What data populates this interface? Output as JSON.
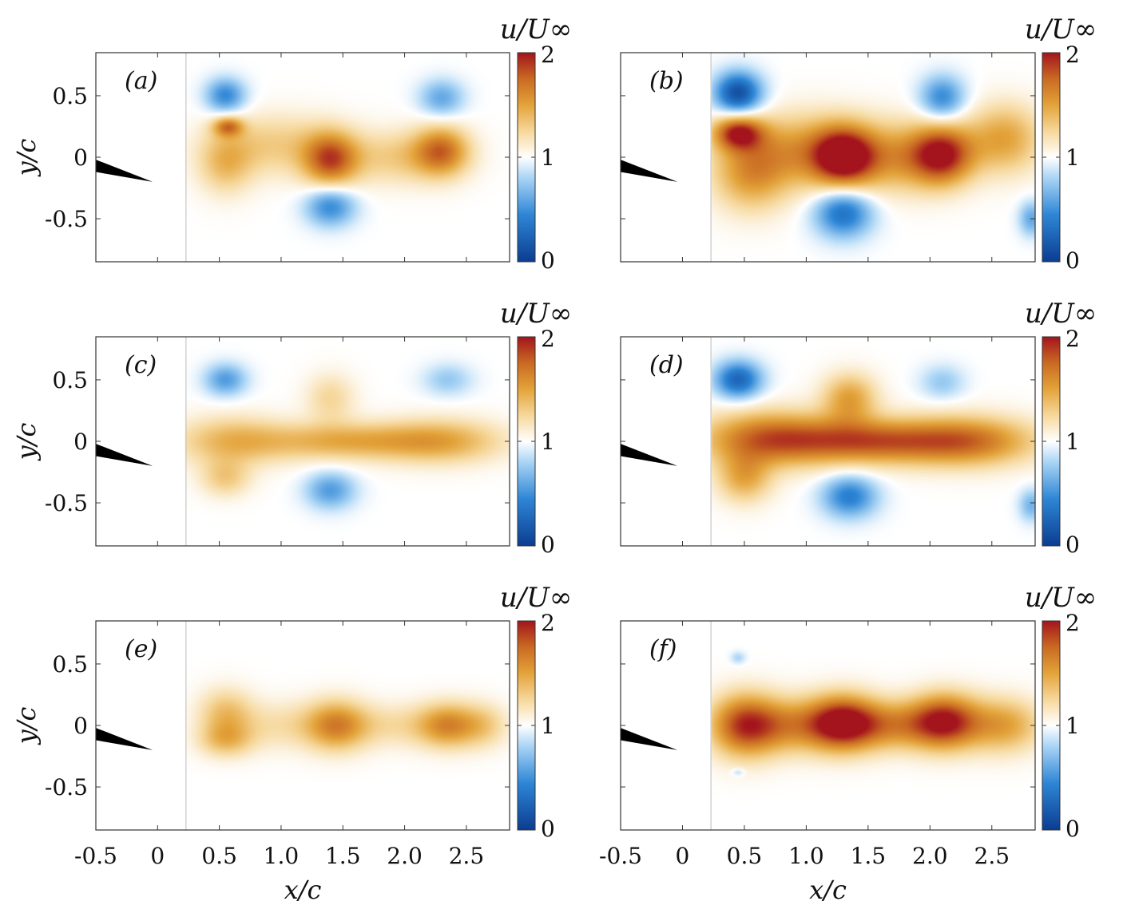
{
  "chart_data": {
    "type": "heatmap",
    "colorbar": {
      "label": "u/U∞",
      "ticks": [
        "0",
        "1",
        "2"
      ],
      "range": [
        0,
        2
      ],
      "colors": [
        "#0b3d91",
        "#2e86d6",
        "#a9d4f5",
        "#ffffff",
        "#f6d79a",
        "#e3a33a",
        "#c96a22",
        "#a3141d"
      ]
    },
    "x_axis": {
      "label": "x/c",
      "range": [
        -0.5,
        2.85
      ],
      "ticks": [
        "-0.5",
        "0",
        "0.5",
        "1.0",
        "1.5",
        "2.0",
        "2.5"
      ]
    },
    "y_axis": {
      "label": "y/c",
      "range": [
        -0.85,
        0.85
      ],
      "ticks": [
        "0.5",
        "0",
        "-0.5"
      ]
    },
    "airfoil_color": "#000000",
    "panels": [
      {
        "id": "(a)",
        "blobs": [
          {
            "x": 0.55,
            "y": 0.5,
            "rx": 0.16,
            "ry": 0.14,
            "u": 0.45
          },
          {
            "x": 0.57,
            "y": 0.25,
            "rx": 0.12,
            "ry": 0.08,
            "u": 1.6
          },
          {
            "x": 0.55,
            "y": -0.05,
            "rx": 0.22,
            "ry": 0.25,
            "u": 1.35
          },
          {
            "x": 0.95,
            "y": 0.1,
            "rx": 0.5,
            "ry": 0.25,
            "u": 1.3
          },
          {
            "x": 1.4,
            "y": -0.02,
            "rx": 0.22,
            "ry": 0.22,
            "u": 1.75
          },
          {
            "x": 1.4,
            "y": -0.4,
            "rx": 0.2,
            "ry": 0.16,
            "u": 0.45
          },
          {
            "x": 1.95,
            "y": 0.0,
            "rx": 0.45,
            "ry": 0.22,
            "u": 1.3
          },
          {
            "x": 2.3,
            "y": 0.05,
            "rx": 0.22,
            "ry": 0.2,
            "u": 1.65
          },
          {
            "x": 2.3,
            "y": 0.48,
            "rx": 0.18,
            "ry": 0.15,
            "u": 0.6
          }
        ]
      },
      {
        "id": "(b)",
        "blobs": [
          {
            "x": 0.45,
            "y": 0.52,
            "rx": 0.19,
            "ry": 0.17,
            "u": 0.1
          },
          {
            "x": 0.45,
            "y": 0.2,
            "rx": 0.2,
            "ry": 0.14,
            "u": 1.85
          },
          {
            "x": 0.55,
            "y": -0.15,
            "rx": 0.3,
            "ry": 0.3,
            "u": 1.45
          },
          {
            "x": 0.95,
            "y": 0.05,
            "rx": 0.55,
            "ry": 0.3,
            "u": 1.5
          },
          {
            "x": 1.3,
            "y": 0.0,
            "rx": 0.25,
            "ry": 0.24,
            "u": 1.95
          },
          {
            "x": 1.3,
            "y": -0.45,
            "rx": 0.23,
            "ry": 0.2,
            "u": 0.3
          },
          {
            "x": 1.75,
            "y": 0.0,
            "rx": 0.4,
            "ry": 0.28,
            "u": 1.45
          },
          {
            "x": 2.1,
            "y": 0.02,
            "rx": 0.25,
            "ry": 0.24,
            "u": 1.9
          },
          {
            "x": 2.1,
            "y": 0.48,
            "rx": 0.18,
            "ry": 0.18,
            "u": 0.45
          },
          {
            "x": 2.6,
            "y": 0.15,
            "rx": 0.3,
            "ry": 0.28,
            "u": 1.5
          },
          {
            "x": 2.82,
            "y": -0.5,
            "rx": 0.1,
            "ry": 0.14,
            "u": 0.6
          }
        ]
      },
      {
        "id": "(c)",
        "blobs": [
          {
            "x": 0.55,
            "y": 0.5,
            "rx": 0.17,
            "ry": 0.13,
            "u": 0.55
          },
          {
            "x": 0.6,
            "y": 0.0,
            "rx": 0.45,
            "ry": 0.2,
            "u": 1.4
          },
          {
            "x": 0.55,
            "y": -0.3,
            "rx": 0.2,
            "ry": 0.15,
            "u": 1.3
          },
          {
            "x": 1.5,
            "y": 0.0,
            "rx": 0.65,
            "ry": 0.15,
            "u": 1.45
          },
          {
            "x": 1.4,
            "y": 0.35,
            "rx": 0.2,
            "ry": 0.2,
            "u": 1.25
          },
          {
            "x": 1.4,
            "y": -0.4,
            "rx": 0.2,
            "ry": 0.15,
            "u": 0.55
          },
          {
            "x": 2.3,
            "y": 0.0,
            "rx": 0.5,
            "ry": 0.18,
            "u": 1.45
          },
          {
            "x": 2.35,
            "y": 0.5,
            "rx": 0.2,
            "ry": 0.13,
            "u": 0.75
          }
        ]
      },
      {
        "id": "(d)",
        "blobs": [
          {
            "x": 0.45,
            "y": 0.5,
            "rx": 0.19,
            "ry": 0.15,
            "u": 0.25
          },
          {
            "x": 0.7,
            "y": 0.02,
            "rx": 0.55,
            "ry": 0.22,
            "u": 1.75
          },
          {
            "x": 0.5,
            "y": -0.3,
            "rx": 0.22,
            "ry": 0.2,
            "u": 1.45
          },
          {
            "x": 1.5,
            "y": 0.0,
            "rx": 0.6,
            "ry": 0.18,
            "u": 1.7
          },
          {
            "x": 1.35,
            "y": 0.35,
            "rx": 0.22,
            "ry": 0.2,
            "u": 1.5
          },
          {
            "x": 1.35,
            "y": -0.45,
            "rx": 0.22,
            "ry": 0.17,
            "u": 0.4
          },
          {
            "x": 2.3,
            "y": 0.0,
            "rx": 0.55,
            "ry": 0.2,
            "u": 1.7
          },
          {
            "x": 2.1,
            "y": 0.48,
            "rx": 0.18,
            "ry": 0.14,
            "u": 0.75
          },
          {
            "x": 2.82,
            "y": -0.52,
            "rx": 0.1,
            "ry": 0.13,
            "u": 0.65
          }
        ]
      },
      {
        "id": "(e)",
        "blobs": [
          {
            "x": 0.55,
            "y": 0.1,
            "rx": 0.22,
            "ry": 0.2,
            "u": 1.35
          },
          {
            "x": 0.55,
            "y": -0.12,
            "rx": 0.22,
            "ry": 0.14,
            "u": 1.35
          },
          {
            "x": 1.0,
            "y": 0.0,
            "rx": 0.4,
            "ry": 0.2,
            "u": 1.2
          },
          {
            "x": 1.45,
            "y": 0.0,
            "rx": 0.25,
            "ry": 0.2,
            "u": 1.6
          },
          {
            "x": 1.9,
            "y": 0.0,
            "rx": 0.35,
            "ry": 0.18,
            "u": 1.2
          },
          {
            "x": 2.35,
            "y": 0.0,
            "rx": 0.25,
            "ry": 0.18,
            "u": 1.6
          },
          {
            "x": 2.65,
            "y": 0.0,
            "rx": 0.2,
            "ry": 0.18,
            "u": 1.25
          }
        ]
      },
      {
        "id": "(f)",
        "blobs": [
          {
            "x": 0.5,
            "y": 0.0,
            "rx": 0.28,
            "ry": 0.25,
            "u": 1.8
          },
          {
            "x": 0.9,
            "y": 0.0,
            "rx": 0.4,
            "ry": 0.22,
            "u": 1.5
          },
          {
            "x": 1.3,
            "y": 0.02,
            "rx": 0.28,
            "ry": 0.22,
            "u": 1.95
          },
          {
            "x": 1.7,
            "y": 0.0,
            "rx": 0.35,
            "ry": 0.2,
            "u": 1.5
          },
          {
            "x": 2.12,
            "y": 0.03,
            "rx": 0.28,
            "ry": 0.22,
            "u": 1.95
          },
          {
            "x": 2.6,
            "y": 0.0,
            "rx": 0.3,
            "ry": 0.22,
            "u": 1.5
          },
          {
            "x": 0.45,
            "y": 0.55,
            "rx": 0.06,
            "ry": 0.05,
            "u": 0.8
          },
          {
            "x": 0.45,
            "y": -0.38,
            "rx": 0.05,
            "ry": 0.03,
            "u": 0.8
          }
        ]
      }
    ]
  }
}
